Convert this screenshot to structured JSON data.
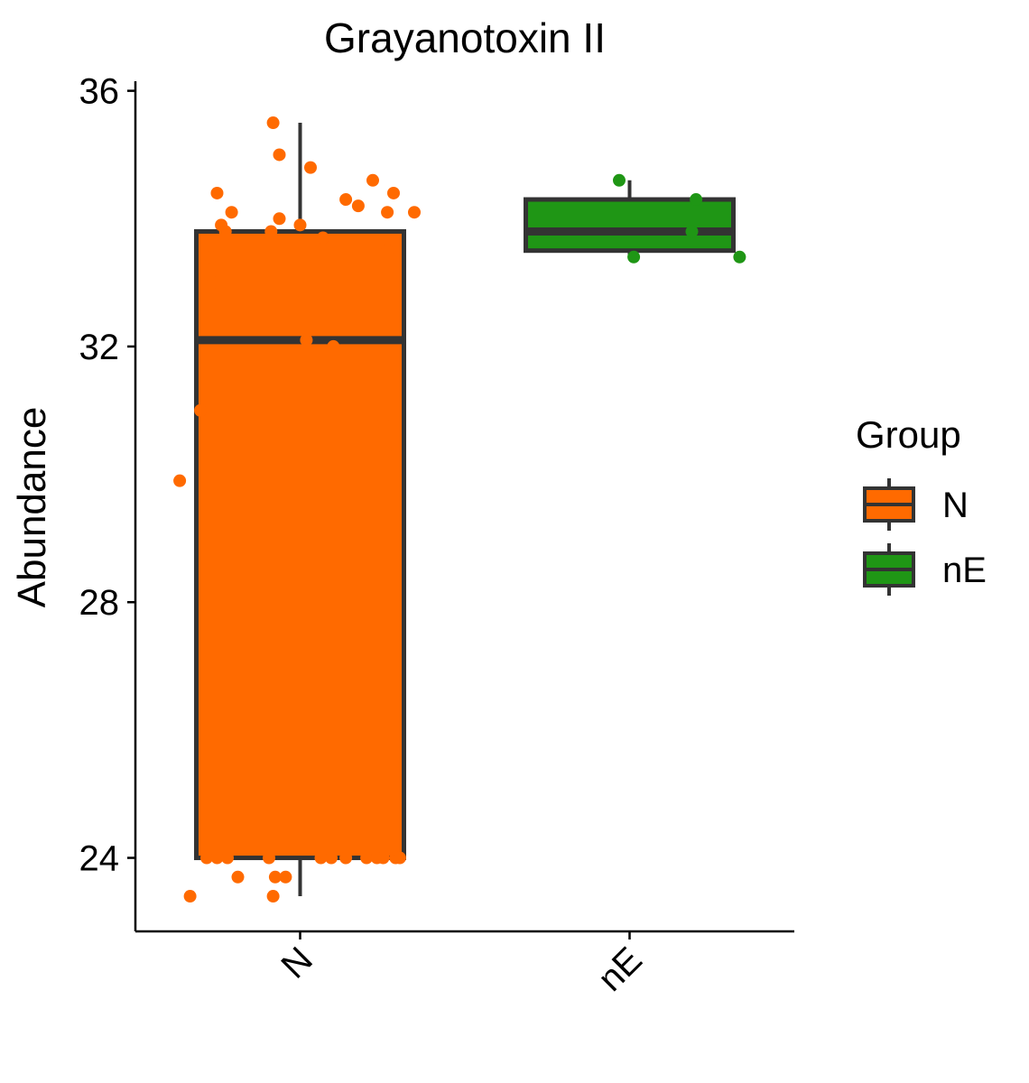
{
  "chart_data": {
    "type": "box",
    "title": "Grayanotoxin II",
    "xlabel": "",
    "ylabel": "Abundance",
    "ylim": [
      22.85,
      36.15
    ],
    "yticks": [
      24,
      28,
      32,
      36
    ],
    "categories": [
      "N",
      "nE"
    ],
    "legend": {
      "title": "Group",
      "placement": "right",
      "entries": [
        "N",
        "nE"
      ]
    },
    "colors": {
      "N": "#FF6A00",
      "nE": "#1F9615",
      "outline": "#333333"
    },
    "series": [
      {
        "name": "N",
        "box": {
          "min": 23.4,
          "q1": 24.0,
          "median": 32.1,
          "q3": 33.8,
          "max": 35.5
        },
        "points": [
          [
            0.37,
            35.5
          ],
          [
            0.55,
            34.8
          ],
          [
            0.1,
            34.4
          ],
          [
            0.72,
            34.3
          ],
          [
            0.85,
            34.6
          ],
          [
            0.95,
            34.4
          ],
          [
            0.4,
            35.0
          ],
          [
            0.78,
            34.2
          ],
          [
            0.92,
            34.1
          ],
          [
            1.05,
            34.1
          ],
          [
            0.17,
            34.1
          ],
          [
            0.12,
            33.9
          ],
          [
            0.4,
            34.0
          ],
          [
            0.5,
            33.9
          ],
          [
            0.07,
            33.4
          ],
          [
            0.14,
            33.8
          ],
          [
            0.36,
            33.8
          ],
          [
            0.61,
            33.7
          ],
          [
            0.92,
            33.5
          ],
          [
            0.08,
            33.0
          ],
          [
            0.53,
            32.1
          ],
          [
            0.66,
            32.0
          ],
          [
            0.02,
            31.0
          ],
          [
            0.9,
            30.8
          ],
          [
            0.91,
            30.4
          ],
          [
            -0.08,
            29.9
          ],
          [
            0.05,
            24.0
          ],
          [
            0.1,
            24.0
          ],
          [
            0.15,
            24.0
          ],
          [
            0.35,
            24.0
          ],
          [
            0.6,
            24.0
          ],
          [
            0.65,
            24.0
          ],
          [
            0.72,
            24.0
          ],
          [
            0.82,
            24.0
          ],
          [
            0.87,
            24.0
          ],
          [
            0.9,
            24.0
          ],
          [
            0.96,
            24.0
          ],
          [
            0.98,
            24.0
          ],
          [
            0.2,
            23.7
          ],
          [
            0.38,
            23.7
          ],
          [
            0.43,
            23.7
          ],
          [
            -0.03,
            23.4
          ],
          [
            0.37,
            23.4
          ]
        ]
      },
      {
        "name": "nE",
        "box": {
          "min": 33.4,
          "q1": 33.5,
          "median": 33.8,
          "q3": 34.3,
          "max": 34.6
        },
        "points": [
          [
            0.45,
            34.6
          ],
          [
            0.82,
            34.3
          ],
          [
            0.8,
            33.8
          ],
          [
            0.52,
            33.4
          ],
          [
            1.03,
            33.4
          ]
        ]
      }
    ]
  }
}
